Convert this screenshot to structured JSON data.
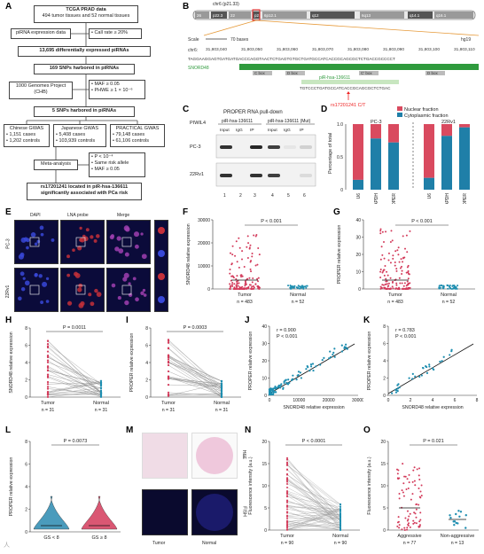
{
  "panelA": {
    "label": "A",
    "tcga": "TCGA PRAD data",
    "tcga_sub": "494 tumor tissues and 52 normal tissues",
    "pirna_expr": "piRNA expression data",
    "call_rate": "• Call rate ≥ 20%",
    "diff": "13,695 differentially expressed piRNAs",
    "snps169": "169 SNPs harbored in piRNAs",
    "kg": "1000 Genomes Project (CHB)",
    "maf": "• MAF ≥ 0.05",
    "phwe": "• PHWE ≥ 1 × 10⁻⁶",
    "snps5": "5 SNPs harbored in piRNAs",
    "cn_title": "Chinese GWAS",
    "cn_cases": "• 1,151 cases",
    "cn_ctrl": "• 1,202 controls",
    "jp_title": "Japanese GWAS",
    "jp_cases": "• 5,408 cases",
    "jp_ctrl": "• 103,939 controls",
    "pr_title": "PRACTICAL GWAS",
    "pr_cases": "• 79,148 cases",
    "pr_ctrl": "• 61,106 controls",
    "meta": "Meta-analysis",
    "meta_p": "• P < 10⁻⁴",
    "meta_same": "• Same risk allele",
    "meta_maf": "• MAF ≥ 0.05",
    "final1": "rs17201241 located in piR-hsa-136611",
    "final2": "significantly associated with PCa risk"
  },
  "panelB": {
    "label": "B",
    "chr": "chr6 (p21.33)",
    "bands": [
      "26",
      "p22.3",
      "22",
      "p21.1",
      "6p12.1",
      "q12",
      "6q13",
      "q14.1",
      "q16.1"
    ],
    "scale": "Scale",
    "scale_val": "70 bases",
    "genome": "hg19",
    "chr6": "chr6:",
    "coords": [
      "31,803,040",
      "31,803,050",
      "31,803,060",
      "31,803,070",
      "31,803,080",
      "31,803,090",
      "31,803,100",
      "31,803,110"
    ],
    "seq": "TAGGAAGGAGTGATGATGACCCAGGTAACTCTGAGTGTGCTGATGCCATCACCGCAGCGCTCTGACCGCCCCT",
    "snord": "SNORD48",
    "cbox1": "C box",
    "dbox1": "D box",
    "cbox2": "C' box",
    "dbox2": "D box",
    "pirna": "piR-hsa-136611",
    "pirna_seq": "TGTCCCTGATGCCATCACCGCAGCGCTCTGAC",
    "snp": "rs17201241 C/T"
  },
  "panelC": {
    "label": "C",
    "title": "PROPER RNA pull-down",
    "piwil4": "PIWIL4",
    "group1": "piR-hsa-136611",
    "group2": "piR-hsa-136611 (Mut)",
    "lanes": [
      "Input",
      "IgG",
      "IP",
      "Input",
      "IgG",
      "IP"
    ],
    "rows": [
      "PC-3",
      "22Rv1"
    ],
    "nums": [
      "1",
      "2",
      "3",
      "4",
      "5",
      "6"
    ]
  },
  "panelD": {
    "label": "D",
    "legend": [
      "Nuclear fraction",
      "Cytoplasmic fraction"
    ],
    "colors": {
      "nuclear": "#d94a5f",
      "cyto": "#1f7fa8",
      "tumor": "#d33a5a",
      "normal": "#1e8eb0",
      "violet": "#2a8ab0"
    },
    "ylabel": "Percentage of total",
    "groups": [
      "PC-3",
      "22Rv1"
    ],
    "cats": [
      "U6",
      "GAPDH",
      "PROPER"
    ],
    "yticks": [
      "0",
      "0.5",
      "1.0"
    ],
    "cyto": [
      0.15,
      0.78,
      0.72,
      0.18,
      0.82,
      0.95
    ]
  },
  "panelE": {
    "label": "E",
    "cols": [
      "DAPI",
      "LNA probe",
      "Merge"
    ],
    "rows": [
      "PC-3",
      "22Rv1"
    ]
  },
  "panelF": {
    "label": "F",
    "ylabel": "SNORD48 relative expression",
    "p": "P < 0.001",
    "groups": [
      "Tumor",
      "Normal"
    ],
    "n": [
      "n = 483",
      "n = 52"
    ],
    "yticks": [
      "0",
      "10000",
      "20000",
      "30000"
    ]
  },
  "panelG": {
    "label": "G",
    "ylabel": "PROPER relative expression",
    "p": "P < 0.001",
    "groups": [
      "Tumor",
      "Normal"
    ],
    "n": [
      "n = 483",
      "n = 52"
    ],
    "yticks": [
      "0",
      "10",
      "20",
      "30",
      "40"
    ]
  },
  "panelH": {
    "label": "H",
    "ylabel": "SNORD48 relative expression",
    "p": "P = 0.0011",
    "groups": [
      "Tumor",
      "Normal"
    ],
    "n": [
      "n = 31",
      "n = 31"
    ],
    "yticks": [
      "0",
      "2",
      "4",
      "6",
      "8"
    ]
  },
  "panelI": {
    "label": "I",
    "ylabel": "PROPER relative expression",
    "p": "P = 0.0003",
    "groups": [
      "Tumor",
      "Normal"
    ],
    "n": [
      "n = 31",
      "n = 31"
    ],
    "yticks": [
      "0",
      "2",
      "4",
      "6",
      "8"
    ]
  },
  "panelJ": {
    "label": "J",
    "ylabel": "PROPER relative expression",
    "xlabel": "SNORD48 relative expression",
    "r": "r = 0.900",
    "p": "P < 0.001",
    "xticks": [
      "0",
      "10000",
      "20000",
      "30000"
    ],
    "yticks": [
      "0",
      "10",
      "20",
      "30",
      "40"
    ]
  },
  "panelK": {
    "label": "K",
    "ylabel": "PROPER relative expression",
    "xlabel": "SNORD48 relative expression",
    "r": "r = 0.783",
    "p": "P < 0.001",
    "xticks": [
      "0",
      "2",
      "4",
      "6",
      "8"
    ],
    "yticks": [
      "0",
      "2",
      "4",
      "6",
      "8"
    ]
  },
  "panelL": {
    "label": "L",
    "ylabel": "PROPER relative expression",
    "p": "P = 0.0073",
    "groups": [
      "GS < 8",
      "GS ≥ 8"
    ],
    "yticks": [
      "0",
      "2",
      "4",
      "6",
      "8"
    ]
  },
  "panelM": {
    "label": "M",
    "he": "H&E",
    "fish": "FISH",
    "groups": [
      "Tumor",
      "Normal"
    ]
  },
  "panelN": {
    "label": "N",
    "ylabel": "Fluorescence intensity (a.u.)",
    "p": "P < 0.0001",
    "groups": [
      "Tumor",
      "Normal"
    ],
    "n": [
      "n = 90",
      "n = 90"
    ],
    "yticks": [
      "0",
      "5",
      "10",
      "15",
      "20"
    ]
  },
  "panelO": {
    "label": "O",
    "ylabel": "Fluorescence intensity (a.u.)",
    "p": "P = 0.021",
    "groups": [
      "Aggressive",
      "Non-aggressive"
    ],
    "n": [
      "n = 77",
      "n = 13"
    ],
    "yticks": [
      "0",
      "5",
      "10",
      "15",
      "20"
    ]
  },
  "watermark": "人"
}
